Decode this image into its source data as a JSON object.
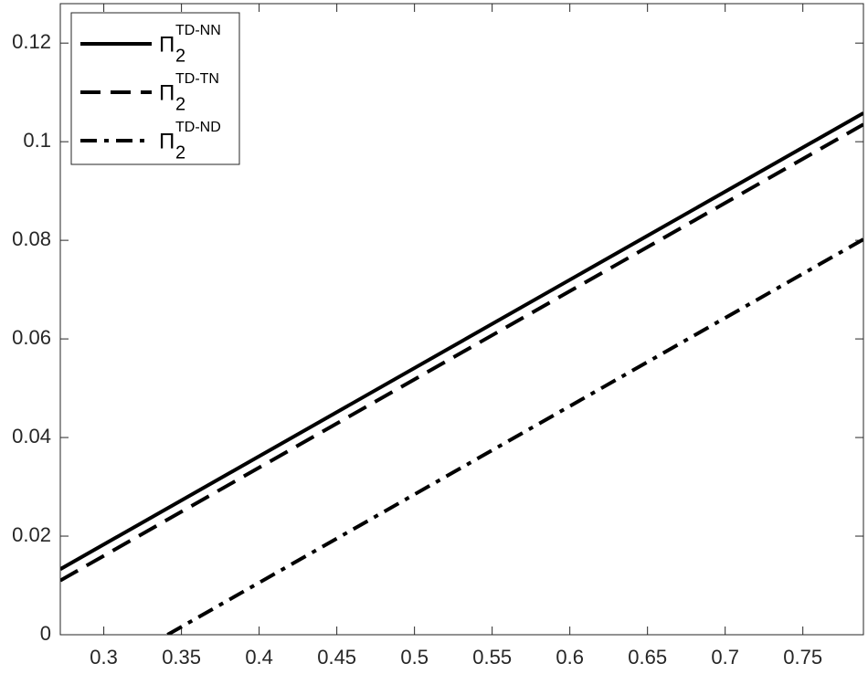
{
  "chart_data": {
    "type": "line",
    "xlim": [
      0.272,
      0.789
    ],
    "ylim": [
      0,
      0.128
    ],
    "xticks": [
      0.3,
      0.35,
      0.4,
      0.45,
      0.5,
      0.55,
      0.6,
      0.65,
      0.7,
      0.75
    ],
    "yticks": [
      0,
      0.02,
      0.04,
      0.06,
      0.08,
      0.1,
      0.12
    ],
    "legend": "upper-left",
    "series": [
      {
        "symbol": "Π",
        "subscript": "2",
        "name": "TD-NN",
        "color": "#000000",
        "linestyle": "solid",
        "x": [
          0.272,
          0.789
        ],
        "values": [
          0.0133,
          0.1058
        ]
      },
      {
        "symbol": "Π",
        "subscript": "2",
        "name": "TD-TN",
        "color": "#000000",
        "linestyle": "dashed",
        "x": [
          0.272,
          0.789
        ],
        "values": [
          0.011,
          0.1035
        ]
      },
      {
        "symbol": "Π",
        "subscript": "2",
        "name": "TD-ND",
        "color": "#000000",
        "linestyle": "dashdot",
        "x": [
          0.341,
          0.789
        ],
        "values": [
          0,
          0.0802
        ]
      }
    ]
  }
}
